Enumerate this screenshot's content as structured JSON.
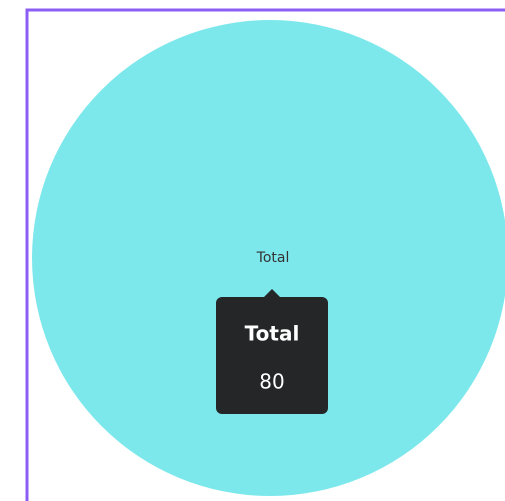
{
  "chart_data": {
    "type": "pie",
    "categories": [
      "Total"
    ],
    "values": [
      80
    ],
    "colors": [
      "#7de8ec"
    ],
    "tooltip": {
      "index": 0
    }
  }
}
